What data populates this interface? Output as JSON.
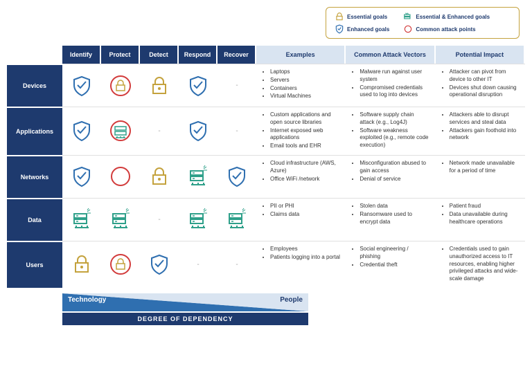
{
  "colors": {
    "navy": "#1e3a6e",
    "gold": "#c4a23d",
    "teal": "#2fa08a",
    "blue": "#2f6fb0",
    "red": "#d23b3b",
    "light_header": "#d9e4f1"
  },
  "legend": {
    "essential": "Essential goals",
    "enhanced": "Enhanced goals",
    "both": "Essential & Enhanced goals",
    "attack": "Common attack points"
  },
  "columns": {
    "identify": "Identify",
    "protect": "Protect",
    "detect": "Detect",
    "respond": "Respond",
    "recover": "Recover",
    "examples": "Examples",
    "vectors": "Common Attack Vectors",
    "impact": "Potential Impact"
  },
  "rows": {
    "devices": {
      "label": "Devices",
      "icons": [
        "shield-check-blue",
        "lock-red",
        "lock-gold",
        "shield-check-blue",
        "-"
      ],
      "examples": [
        "Laptops",
        "Servers",
        "Containers",
        "Virtual Machines"
      ],
      "vectors": [
        "Malware run against user system",
        "Compromised credentials used to log into devices"
      ],
      "impact": [
        "Attacker can pivot from device to other IT",
        "Devices shut down causing operational disruption"
      ]
    },
    "applications": {
      "label": "Applications",
      "icons": [
        "shield-check-blue",
        "stack-teal-red",
        "-",
        "shield-check-blue",
        "-"
      ],
      "examples": [
        "Custom applications and open source libraries",
        "Internet exposed web applications",
        "Email tools and EHR"
      ],
      "vectors": [
        "Software supply chain attack (e.g., Log4J)",
        "Software weakness exploited (e.g., remote code execution)"
      ],
      "impact": [
        "Attackers able to disrupt services and steal data",
        "Attackers gain foothold into network"
      ]
    },
    "networks": {
      "label": "Networks",
      "icons": [
        "shield-check-blue",
        "circle-red",
        "lock-gold",
        "stack-teal",
        "shield-check-blue"
      ],
      "examples": [
        "Cloud infrastructure (AWS, Azure)",
        "Office WiFi /network"
      ],
      "vectors": [
        "Misconfiguration abused to gain access",
        "Denial of service"
      ],
      "impact": [
        "Network made unavailable for a period of time"
      ]
    },
    "data": {
      "label": "Data",
      "icons": [
        "stack-teal",
        "stack-teal",
        "-",
        "stack-teal",
        "stack-teal"
      ],
      "examples": [
        "PII or PHI",
        "Claims data"
      ],
      "vectors": [
        "Stolen data",
        "Ransomware used to encrypt data"
      ],
      "impact": [
        "Patient fraud",
        "Data unavailable during healthcare operations"
      ]
    },
    "users": {
      "label": "Users",
      "icons": [
        "lock-gold",
        "lock-red",
        "shield-check-blue",
        "-",
        "-"
      ],
      "examples": [
        "Employees",
        "Patients logging into a portal"
      ],
      "vectors": [
        "Social engineering / phishing",
        "Credential theft"
      ],
      "impact": [
        "Credentials used to gain unauthorized access to IT resources, enabling higher privileged attacks and wide-scale damage"
      ]
    }
  },
  "dependency": {
    "left": "Technology",
    "right": "People",
    "title": "DEGREE OF DEPENDENCY"
  }
}
